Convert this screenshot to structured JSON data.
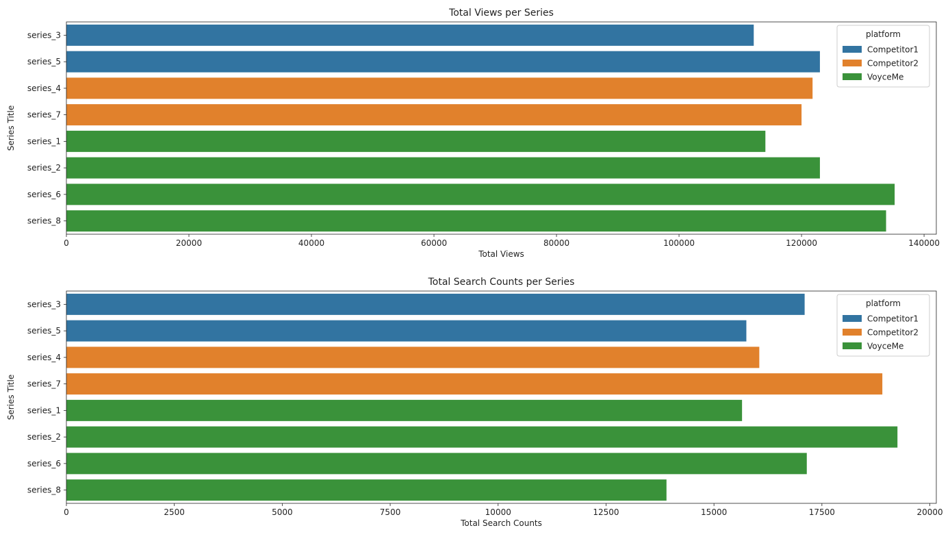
{
  "chart_data": [
    {
      "type": "bar",
      "orientation": "horizontal",
      "title": "Total Views per Series",
      "xlabel": "Total Views",
      "ylabel": "Series Title",
      "xlim": [
        0,
        142000
      ],
      "xticks": [
        0,
        20000,
        40000,
        60000,
        80000,
        100000,
        120000,
        140000
      ],
      "categories": [
        "series_3",
        "series_5",
        "series_4",
        "series_7",
        "series_1",
        "series_2",
        "series_6",
        "series_8"
      ],
      "platform": [
        "Competitor1",
        "Competitor1",
        "Competitor2",
        "Competitor2",
        "VoyceMe",
        "VoyceMe",
        "VoyceMe",
        "VoyceMe"
      ],
      "values": [
        112200,
        123000,
        121800,
        120000,
        114100,
        123000,
        135200,
        133800
      ],
      "legend": {
        "title": "platform",
        "position": "top-right",
        "entries": [
          {
            "label": "Competitor1",
            "color": "#3274a1"
          },
          {
            "label": "Competitor2",
            "color": "#e1812c"
          },
          {
            "label": "VoyceMe",
            "color": "#3a923a"
          }
        ]
      },
      "grid": false
    },
    {
      "type": "bar",
      "orientation": "horizontal",
      "title": "Total Search Counts per Series",
      "xlabel": "Total Search Counts",
      "ylabel": "Series Title",
      "xlim": [
        0,
        20150
      ],
      "xticks": [
        0,
        2500,
        5000,
        7500,
        10000,
        12500,
        15000,
        17500,
        20000
      ],
      "categories": [
        "series_3",
        "series_5",
        "series_4",
        "series_7",
        "series_1",
        "series_2",
        "series_6",
        "series_8"
      ],
      "platform": [
        "Competitor1",
        "Competitor1",
        "Competitor2",
        "Competitor2",
        "VoyceMe",
        "VoyceMe",
        "VoyceMe",
        "VoyceMe"
      ],
      "values": [
        17100,
        15750,
        16050,
        18900,
        15650,
        19250,
        17150,
        13900
      ],
      "legend": {
        "title": "platform",
        "position": "top-right",
        "entries": [
          {
            "label": "Competitor1",
            "color": "#3274a1"
          },
          {
            "label": "Competitor2",
            "color": "#e1812c"
          },
          {
            "label": "VoyceMe",
            "color": "#3a923a"
          }
        ]
      },
      "grid": false
    }
  ]
}
